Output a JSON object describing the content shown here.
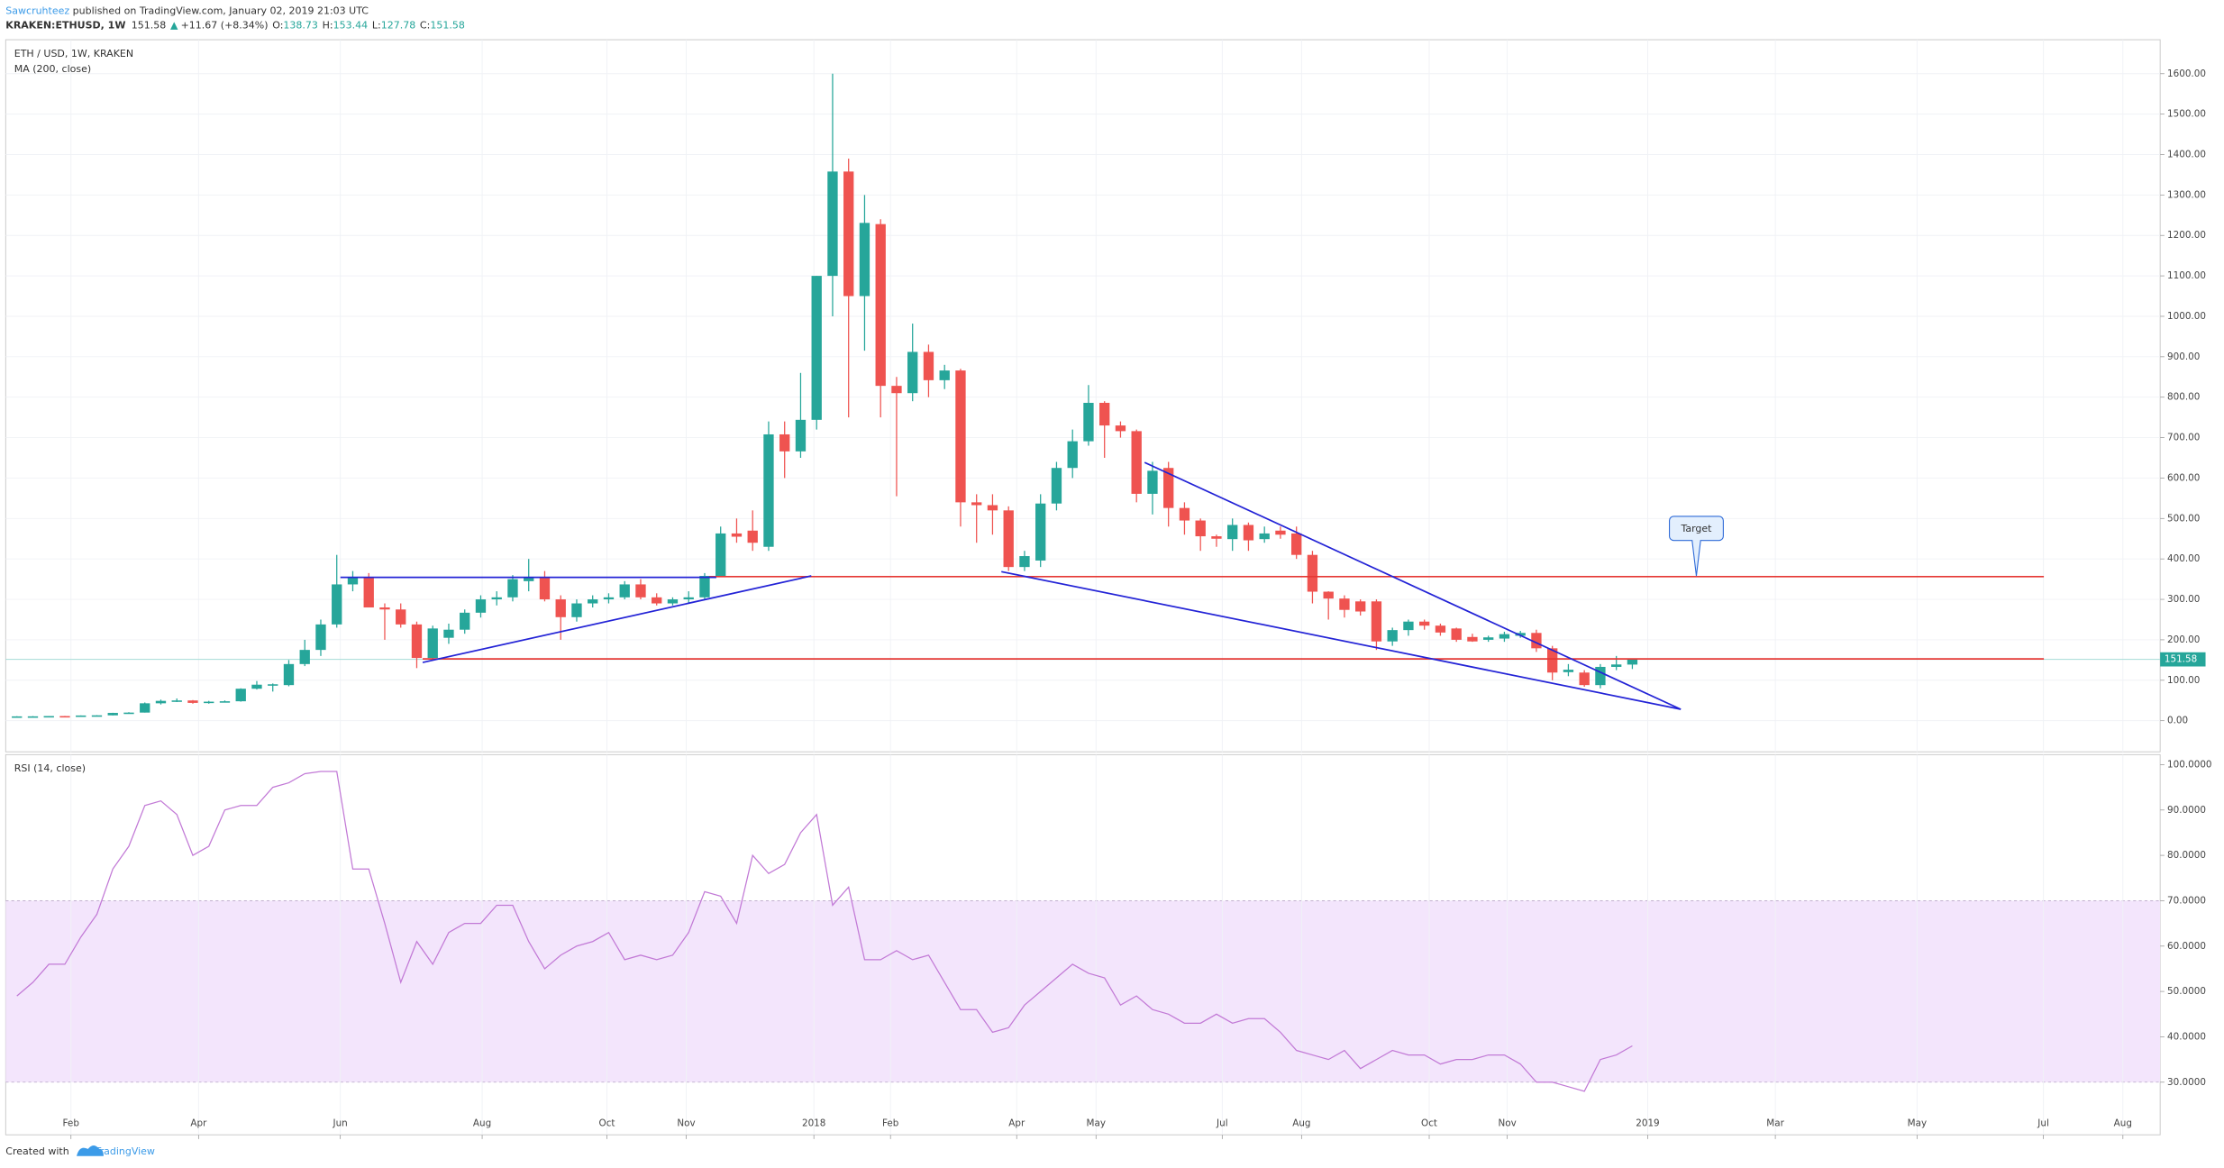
{
  "header": {
    "author": "Sawcruhteez",
    "published": " published on TradingView.com, January 02, 2019 21:03 UTC",
    "symbol": "KRAKEN:ETHUSD, 1W",
    "last": "151.58",
    "arrow": "▲",
    "change": "+11.67 (+8.34%)",
    "ohlc": [
      {
        "key": "O:",
        "value": "138.73"
      },
      {
        "key": "H:",
        "value": "153.44"
      },
      {
        "key": "L:",
        "value": "127.78"
      },
      {
        "key": "C:",
        "value": "151.58"
      }
    ]
  },
  "footer": {
    "text": "Created with",
    "brand": "TradingView"
  },
  "chart_data": [
    {
      "type": "candlestick",
      "title": "ETH / USD, 1W, KRAKEN",
      "subtitle": "MA (200, close)",
      "up_color": "#26a69a",
      "down_color": "#ef5350",
      "grid": true,
      "xlim": [
        -0.7,
        134
      ],
      "xticks": [
        {
          "value": 3.38,
          "label": "Feb"
        },
        {
          "value": 11.36,
          "label": "Apr"
        },
        {
          "value": 20.22,
          "label": "Jun"
        },
        {
          "value": 29.09,
          "label": "Aug"
        },
        {
          "value": 36.89,
          "label": "Oct"
        },
        {
          "value": 41.85,
          "label": "Nov"
        },
        {
          "value": 49.83,
          "label": "2018"
        },
        {
          "value": 54.62,
          "label": "Feb"
        },
        {
          "value": 62.51,
          "label": "Apr"
        },
        {
          "value": 67.47,
          "label": "May"
        },
        {
          "value": 75.36,
          "label": "Jul"
        },
        {
          "value": 80.32,
          "label": "Aug"
        },
        {
          "value": 88.3,
          "label": "Oct"
        },
        {
          "value": 93.18,
          "label": "Nov"
        },
        {
          "value": 101.96,
          "label": "2019"
        },
        {
          "value": 109.94,
          "label": "Mar"
        },
        {
          "value": 118.8,
          "label": "May"
        },
        {
          "value": 126.7,
          "label": "Jul"
        },
        {
          "value": 131.67,
          "label": "Aug"
        }
      ],
      "ylim": [
        -77,
        1684
      ],
      "yticks": [
        {
          "value": 0,
          "label": "0.00"
        },
        {
          "value": 100,
          "label": "100.00"
        },
        {
          "value": 200,
          "label": "200.00"
        },
        {
          "value": 300,
          "label": "300.00"
        },
        {
          "value": 400,
          "label": "400.00"
        },
        {
          "value": 500,
          "label": "500.00"
        },
        {
          "value": 600,
          "label": "600.00"
        },
        {
          "value": 700,
          "label": "700.00"
        },
        {
          "value": 800,
          "label": "800.00"
        },
        {
          "value": 900,
          "label": "900.00"
        },
        {
          "value": 1000,
          "label": "1000.00"
        },
        {
          "value": 1100,
          "label": "1100.00"
        },
        {
          "value": 1200,
          "label": "1200.00"
        },
        {
          "value": 1300,
          "label": "1300.00"
        },
        {
          "value": 1400,
          "label": "1400.00"
        },
        {
          "value": 1500,
          "label": "1500.00"
        },
        {
          "value": 1600,
          "label": "1600.00"
        }
      ],
      "last_price": 151.58,
      "annotation": "Target",
      "open": [
        10.5,
        10.6,
        10.7,
        11.4,
        11.3,
        12.8,
        13.2,
        19.2,
        20,
        43,
        49,
        50,
        44,
        47,
        48,
        79,
        89,
        88,
        140,
        175,
        238,
        337,
        355,
        280,
        275,
        238,
        155,
        205,
        225,
        267,
        300,
        305,
        345,
        355,
        300,
        256,
        290,
        300,
        305,
        337,
        305,
        290,
        300,
        305,
        358,
        463,
        470,
        430,
        708,
        666,
        744,
        1100,
        1358,
        1050,
        1228,
        828,
        810,
        912,
        842,
        866,
        540,
        533,
        520,
        380,
        396,
        537,
        625,
        691,
        786,
        730,
        716,
        561,
        625,
        526,
        495,
        456,
        449,
        484,
        449,
        470,
        463,
        410,
        319,
        302,
        295,
        295,
        196,
        224,
        245,
        235,
        228,
        207,
        200,
        203,
        210,
        217,
        179,
        120,
        119,
        88,
        133,
        138.73
      ],
      "high": [
        11,
        11.2,
        11.5,
        11.8,
        13,
        13.5,
        19.5,
        21,
        45,
        52,
        55,
        51,
        49,
        50,
        80,
        98,
        92,
        150,
        200,
        250,
        410,
        370,
        365,
        290,
        290,
        245,
        235,
        240,
        275,
        310,
        320,
        360,
        400,
        370,
        310,
        300,
        310,
        315,
        345,
        350,
        315,
        305,
        320,
        365,
        480,
        500,
        520,
        740,
        740,
        860,
        1100,
        1600,
        1390,
        1300,
        1240,
        850,
        982,
        930,
        880,
        870,
        560,
        560,
        530,
        420,
        560,
        640,
        720,
        830,
        790,
        740,
        720,
        640,
        640,
        540,
        500,
        460,
        500,
        490,
        480,
        480,
        480,
        420,
        320,
        310,
        300,
        300,
        230,
        250,
        250,
        240,
        230,
        215,
        210,
        220,
        222,
        225,
        185,
        140,
        125,
        140,
        160,
        153.44
      ],
      "low": [
        9.8,
        10.3,
        10.5,
        10.9,
        11,
        12.3,
        13,
        17.5,
        20,
        40,
        46,
        42,
        42,
        45,
        47,
        77,
        72,
        85,
        135,
        160,
        230,
        320,
        280,
        200,
        230,
        130,
        150,
        190,
        215,
        255,
        285,
        295,
        320,
        295,
        200,
        245,
        280,
        290,
        300,
        300,
        285,
        285,
        290,
        300,
        355,
        440,
        420,
        420,
        600,
        650,
        720,
        1000,
        750,
        915,
        750,
        555,
        790,
        800,
        820,
        480,
        440,
        460,
        370,
        370,
        380,
        520,
        600,
        680,
        650,
        700,
        540,
        510,
        480,
        460,
        420,
        430,
        420,
        420,
        440,
        450,
        400,
        290,
        250,
        255,
        260,
        175,
        185,
        210,
        225,
        210,
        195,
        195,
        195,
        195,
        205,
        170,
        100,
        110,
        84,
        80,
        125,
        127.78
      ],
      "close": [
        10.6,
        10.7,
        11.4,
        11.3,
        12.8,
        13.2,
        19.2,
        20,
        43,
        49,
        50,
        44,
        47,
        48,
        79,
        89,
        90,
        140,
        175,
        238,
        337,
        355,
        280,
        275,
        238,
        155,
        228,
        225,
        267,
        300,
        305,
        350,
        355,
        300,
        256,
        290,
        300,
        305,
        337,
        305,
        290,
        300,
        305,
        358,
        463,
        455,
        440,
        708,
        666,
        744,
        1100,
        1358,
        1050,
        1231,
        828,
        810,
        912,
        842,
        866,
        540,
        533,
        520,
        380,
        407,
        537,
        625,
        691,
        786,
        730,
        716,
        561,
        618,
        526,
        495,
        456,
        450,
        484,
        446,
        463,
        460,
        410,
        319,
        302,
        274,
        270,
        196,
        224,
        245,
        235,
        218,
        200,
        196,
        206,
        214,
        217,
        179,
        119,
        126,
        88,
        133,
        139,
        151.58
      ]
    },
    {
      "type": "line",
      "title": "RSI (14, close)",
      "color": "#c27ad6",
      "band": [
        30,
        70
      ],
      "band_color": "#f3e5fc",
      "ylim": [
        18.4,
        102.2
      ],
      "yticks": [
        {
          "value": 30,
          "label": "30.0000"
        },
        {
          "value": 40,
          "label": "40.0000"
        },
        {
          "value": 50,
          "label": "50.0000"
        },
        {
          "value": 60,
          "label": "60.0000"
        },
        {
          "value": 70,
          "label": "70.0000"
        },
        {
          "value": 80,
          "label": "80.0000"
        },
        {
          "value": 90,
          "label": "90.0000"
        },
        {
          "value": 100,
          "label": "100.0000"
        }
      ],
      "values": [
        49,
        52,
        56,
        56,
        62,
        67,
        77,
        82,
        91,
        92,
        89,
        80,
        82,
        90,
        91,
        91,
        95,
        96,
        98,
        98.5,
        98.5,
        77,
        77,
        65,
        52,
        61,
        56,
        63,
        65,
        65,
        69,
        69,
        61,
        55,
        58,
        60,
        61,
        63,
        57,
        58,
        57,
        58,
        63,
        72,
        71,
        65,
        80,
        76,
        78,
        85,
        89,
        69,
        73,
        57,
        57,
        59,
        57,
        58,
        52,
        46,
        46,
        41,
        42,
        47,
        50,
        53,
        56,
        54,
        53,
        47,
        49,
        46,
        45,
        43,
        43,
        45,
        43,
        44,
        44,
        41,
        37,
        36,
        35,
        37,
        33,
        35,
        37,
        36,
        36,
        34,
        35,
        35,
        36,
        36,
        34,
        30,
        30,
        29,
        28,
        35,
        36,
        38
      ]
    }
  ]
}
